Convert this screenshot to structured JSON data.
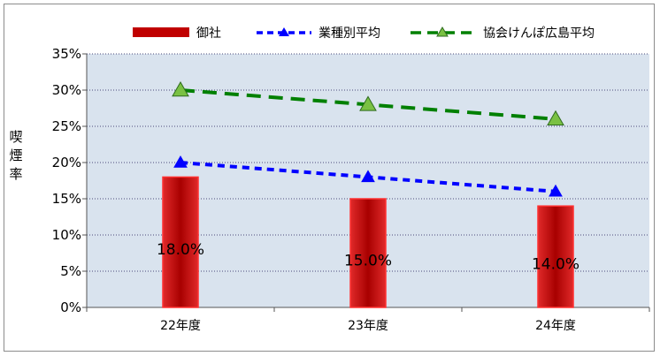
{
  "chart_data": {
    "type": "bar",
    "ylabel": "喫煙率",
    "categories": [
      "22年度",
      "23年度",
      "24年度"
    ],
    "ylim": [
      0,
      35
    ],
    "y_ticks": [
      "0%",
      "5%",
      "10%",
      "15%",
      "20%",
      "25%",
      "30%",
      "35%"
    ],
    "grid": true,
    "legend_position": "top",
    "series": [
      {
        "name": "御社",
        "kind": "bar",
        "values": [
          18,
          15,
          14
        ],
        "data_labels": [
          "18.0%",
          "15.0%",
          "14.0%"
        ],
        "color": "#c00000"
      },
      {
        "name": "業種別平均",
        "kind": "line",
        "values": [
          20,
          18,
          16
        ],
        "color": "#0000ff",
        "marker": "triangle"
      },
      {
        "name": "協会けんぽ広島平均",
        "kind": "line",
        "values": [
          30,
          28,
          26
        ],
        "color": "#008000",
        "marker": "triangle"
      }
    ]
  }
}
